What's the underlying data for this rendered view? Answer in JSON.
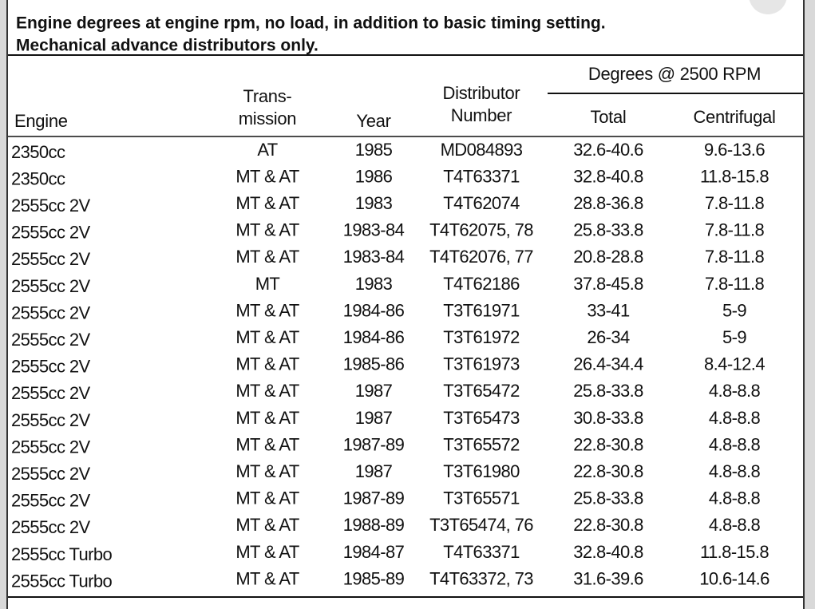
{
  "header": {
    "lines": [
      "Engine degrees at engine rpm, no load, in addition to basic timing setting.",
      "Mechanical advance distributors only."
    ]
  },
  "table": {
    "group_header": "Degrees @ 2500 RPM",
    "columns": [
      [
        "Engine"
      ],
      [
        "Trans-",
        "mission"
      ],
      [
        "Year"
      ],
      [
        "Distributor",
        "Number"
      ],
      [
        "Total"
      ],
      [
        "Centrifugal"
      ]
    ],
    "rows": [
      [
        "2350cc",
        "AT",
        "1985",
        "MD084893",
        "32.6-40.6",
        "9.6-13.6"
      ],
      [
        "2350cc",
        "MT & AT",
        "1986",
        "T4T63371",
        "32.8-40.8",
        "11.8-15.8"
      ],
      [
        "2555cc 2V",
        "MT & AT",
        "1983",
        "T4T62074",
        "28.8-36.8",
        "7.8-11.8"
      ],
      [
        "2555cc 2V",
        "MT & AT",
        "1983-84",
        "T4T62075, 78",
        "25.8-33.8",
        "7.8-11.8"
      ],
      [
        "2555cc 2V",
        "MT & AT",
        "1983-84",
        "T4T62076, 77",
        "20.8-28.8",
        "7.8-11.8"
      ],
      [
        "2555cc 2V",
        "MT",
        "1983",
        "T4T62186",
        "37.8-45.8",
        "7.8-11.8"
      ],
      [
        "2555cc 2V",
        "MT & AT",
        "1984-86",
        "T3T61971",
        "33-41",
        "5-9"
      ],
      [
        "2555cc 2V",
        "MT & AT",
        "1984-86",
        "T3T61972",
        "26-34",
        "5-9"
      ],
      [
        "2555cc 2V",
        "MT & AT",
        "1985-86",
        "T3T61973",
        "26.4-34.4",
        "8.4-12.4"
      ],
      [
        "2555cc 2V",
        "MT & AT",
        "1987",
        "T3T65472",
        "25.8-33.8",
        "4.8-8.8"
      ],
      [
        "2555cc 2V",
        "MT & AT",
        "1987",
        "T3T65473",
        "30.8-33.8",
        "4.8-8.8"
      ],
      [
        "2555cc 2V",
        "MT & AT",
        "1987-89",
        "T3T65572",
        "22.8-30.8",
        "4.8-8.8"
      ],
      [
        "2555cc 2V",
        "MT & AT",
        "1987",
        "T3T61980",
        "22.8-30.8",
        "4.8-8.8"
      ],
      [
        "2555cc 2V",
        "MT & AT",
        "1987-89",
        "T3T65571",
        "25.8-33.8",
        "4.8-8.8"
      ],
      [
        "2555cc 2V",
        "MT & AT",
        "1988-89",
        "T3T65474, 76",
        "22.8-30.8",
        "4.8-8.8"
      ],
      [
        "2555cc Turbo",
        "MT & AT",
        "1984-87",
        "T4T63371",
        "32.8-40.8",
        "11.8-15.8"
      ],
      [
        "2555cc Turbo",
        "MT & AT",
        "1985-89",
        "T4T63372, 73",
        "31.6-39.6",
        "10.6-14.6"
      ]
    ]
  }
}
